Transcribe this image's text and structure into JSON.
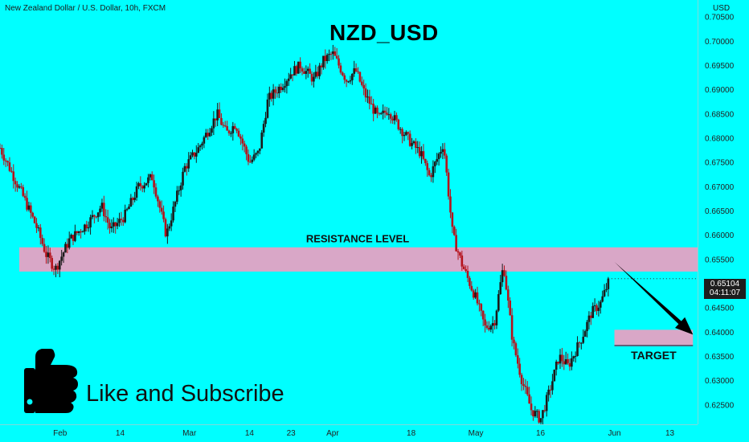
{
  "header": {
    "symbol_line": "New Zealand Dollar / U.S. Dollar, 10h, FXCM",
    "currency": "USD"
  },
  "chart_title": "NZD_USD",
  "annotations": {
    "resistance": "RESISTANCE LEVEL",
    "target": "TARGET",
    "like_text": "Like and Subscribe"
  },
  "price_box": {
    "price": "0.65104",
    "countdown": "04:11:07"
  },
  "colors": {
    "background": "#00ffff",
    "zone": "#d9a7c7",
    "candle_up": "#1a1a1a",
    "candle_down": "#b5121b",
    "arrow": "#000000"
  },
  "icons": {
    "like": "thumbs-up-icon",
    "arrow": "down-arrow-icon"
  },
  "chart_data": {
    "type": "candlestick",
    "title": "NZD_USD",
    "ylim": [
      0.621,
      0.7085
    ],
    "y_ticks": [
      "0.70500",
      "0.70000",
      "0.69500",
      "0.69000",
      "0.68500",
      "0.68000",
      "0.67500",
      "0.67000",
      "0.66500",
      "0.66000",
      "0.65500",
      "0.65000",
      "0.64500",
      "0.64000",
      "0.63500",
      "0.63000",
      "0.62500"
    ],
    "x_ticks": [
      {
        "label": "Feb",
        "date": "2022-02-01"
      },
      {
        "label": "14",
        "date": "2022-02-14"
      },
      {
        "label": "Mar",
        "date": "2022-03-01"
      },
      {
        "label": "14",
        "date": "2022-03-14"
      },
      {
        "label": "23",
        "date": "2022-03-23"
      },
      {
        "label": "Apr",
        "date": "2022-04-01"
      },
      {
        "label": "18",
        "date": "2022-04-18"
      },
      {
        "label": "May",
        "date": "2022-05-02"
      },
      {
        "label": "16",
        "date": "2022-05-16"
      },
      {
        "label": "Jun",
        "date": "2022-06-01"
      },
      {
        "label": "13",
        "date": "2022-06-13"
      }
    ],
    "x_range": [
      "2022-01-19",
      "2022-06-19"
    ],
    "path": [
      [
        "2022-01-19",
        0.678
      ],
      [
        "2022-01-24",
        0.668
      ],
      [
        "2022-01-27",
        0.6615
      ],
      [
        "2022-01-29",
        0.656
      ],
      [
        "2022-01-31",
        0.653
      ],
      [
        "2022-02-03",
        0.659
      ],
      [
        "2022-02-07",
        0.6625
      ],
      [
        "2022-02-10",
        0.666
      ],
      [
        "2022-02-12",
        0.661
      ],
      [
        "2022-02-15",
        0.664
      ],
      [
        "2022-02-18",
        0.67
      ],
      [
        "2022-02-21",
        0.672
      ],
      [
        "2022-02-24",
        0.66
      ],
      [
        "2022-02-28",
        0.674
      ],
      [
        "2022-03-03",
        0.678
      ],
      [
        "2022-03-07",
        0.685
      ],
      [
        "2022-03-09",
        0.681
      ],
      [
        "2022-03-11",
        0.683
      ],
      [
        "2022-03-14",
        0.675
      ],
      [
        "2022-03-16",
        0.677
      ],
      [
        "2022-03-18",
        0.688
      ],
      [
        "2022-03-21",
        0.691
      ],
      [
        "2022-03-23",
        0.6935
      ],
      [
        "2022-03-25",
        0.695
      ],
      [
        "2022-03-28",
        0.692
      ],
      [
        "2022-03-30",
        0.696
      ],
      [
        "2022-04-01",
        0.6975
      ],
      [
        "2022-04-04",
        0.692
      ],
      [
        "2022-04-06",
        0.694
      ],
      [
        "2022-04-08",
        0.689
      ],
      [
        "2022-04-11",
        0.684
      ],
      [
        "2022-04-13",
        0.686
      ],
      [
        "2022-04-15",
        0.683
      ],
      [
        "2022-04-18",
        0.679
      ],
      [
        "2022-04-20",
        0.677
      ],
      [
        "2022-04-22",
        0.672
      ],
      [
        "2022-04-25",
        0.679
      ],
      [
        "2022-04-27",
        0.66
      ],
      [
        "2022-04-29",
        0.654
      ],
      [
        "2022-05-02",
        0.647
      ],
      [
        "2022-05-04",
        0.641
      ],
      [
        "2022-05-06",
        0.642
      ],
      [
        "2022-05-08",
        0.654
      ],
      [
        "2022-05-10",
        0.638
      ],
      [
        "2022-05-12",
        0.63
      ],
      [
        "2022-05-14",
        0.624
      ],
      [
        "2022-05-16",
        0.622
      ],
      [
        "2022-05-18",
        0.628
      ],
      [
        "2022-05-20",
        0.635
      ],
      [
        "2022-05-22",
        0.633
      ],
      [
        "2022-05-25",
        0.639
      ],
      [
        "2022-05-27",
        0.644
      ],
      [
        "2022-05-29",
        0.646
      ],
      [
        "2022-05-31",
        0.651
      ]
    ],
    "resistance_zone": [
      0.6525,
      0.6575
    ],
    "target_zone": [
      0.6374,
      0.6405
    ],
    "target_zone_dates": [
      "2022-06-01",
      "2022-06-18"
    ],
    "arrow": {
      "from": [
        "2022-06-01",
        0.6545
      ],
      "to": [
        "2022-06-18",
        0.6395
      ]
    },
    "last_price": 0.65104
  }
}
